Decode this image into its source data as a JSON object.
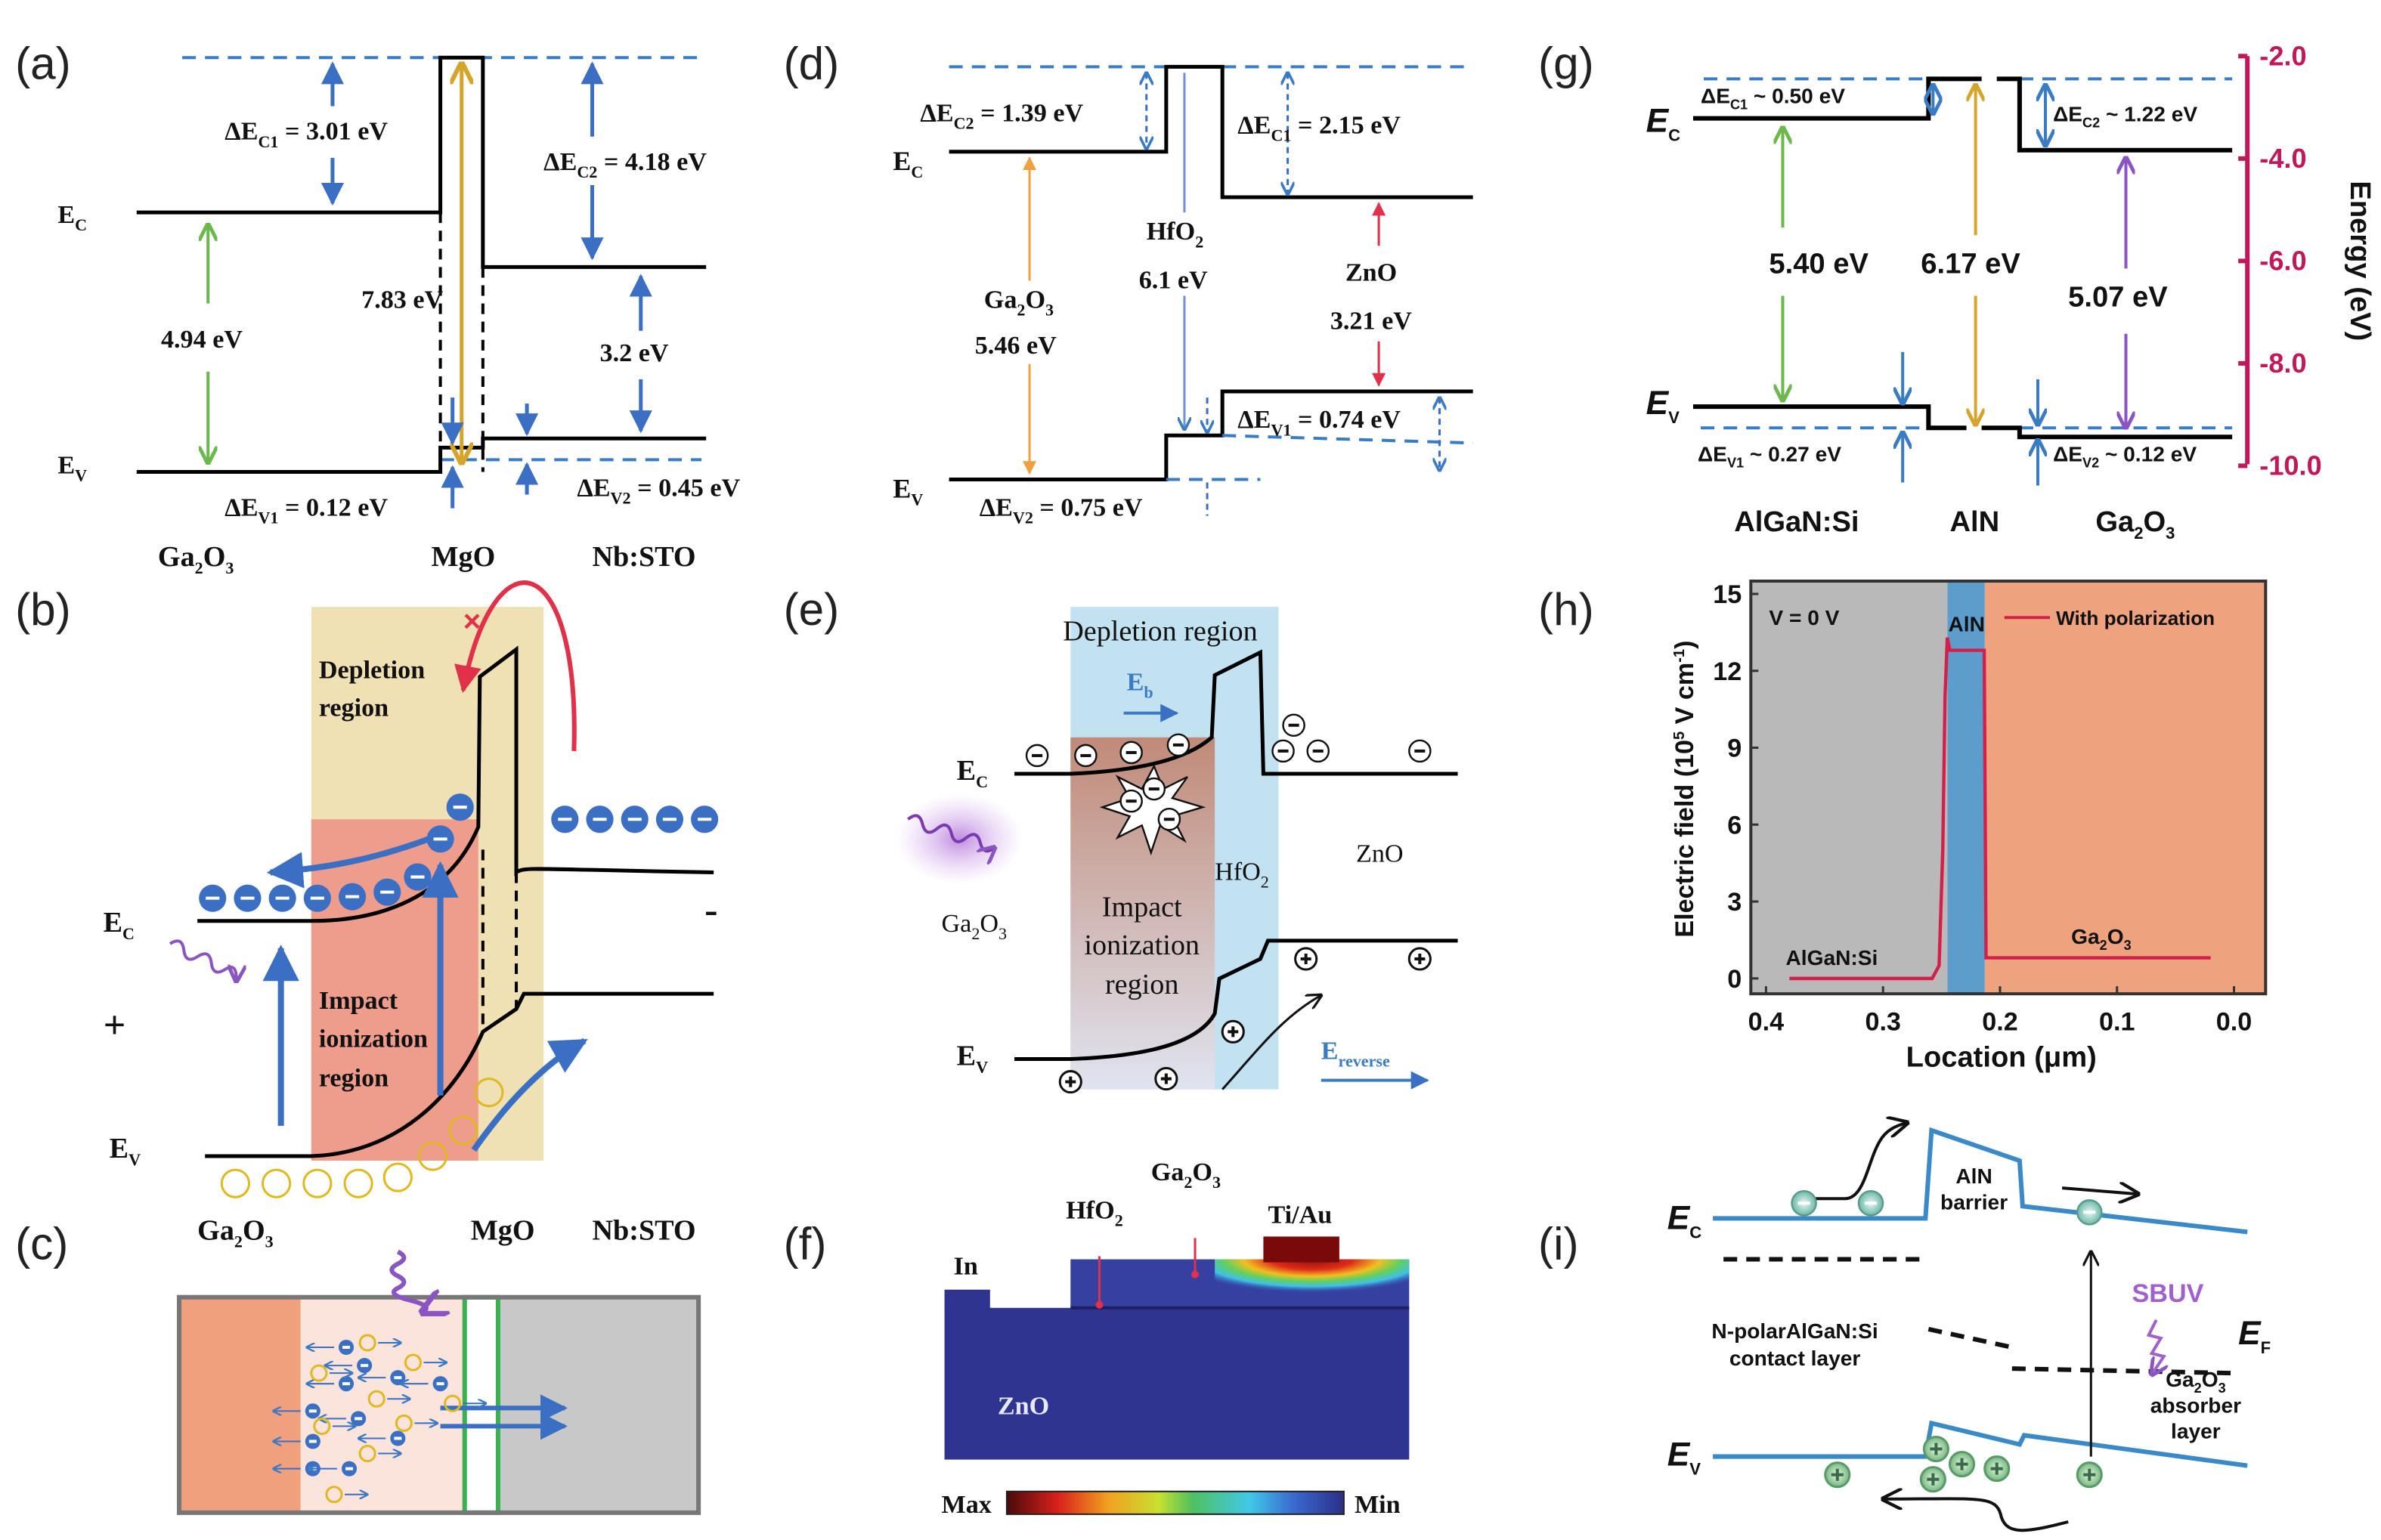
{
  "panels": {
    "a": {
      "label": "(a)",
      "ec": [
        "E",
        "C"
      ],
      "ev": [
        "E",
        "V"
      ],
      "dec1": [
        "ΔE",
        "C1",
        " = 3.01 eV"
      ],
      "dec2": [
        "ΔE",
        "C2",
        " = 4.18 eV"
      ],
      "dev1": [
        "ΔE",
        "V1",
        " = 0.12 eV"
      ],
      "dev2": [
        "ΔE",
        "V2",
        " = 0.45 eV"
      ],
      "gap1": "4.94 eV",
      "gap2": "7.83 eV",
      "gap3": "3.2 eV",
      "mat1": [
        "Ga",
        "2",
        "O",
        "3"
      ],
      "mat2": "MgO",
      "mat3": "Nb:STO"
    },
    "b": {
      "label": "(b)",
      "depletion": [
        "Depletion",
        "region"
      ],
      "impact": [
        "Impact",
        "ionization",
        "region"
      ],
      "ec": [
        "E",
        "C"
      ],
      "ev": [
        "E",
        "V"
      ],
      "plus": "+",
      "minus": "-",
      "mat1": [
        "Ga",
        "2",
        "O",
        "3"
      ],
      "mat2": "MgO",
      "mat3": "Nb:STO"
    },
    "c": {
      "label": "(c)"
    },
    "d": {
      "label": "(d)",
      "ec": [
        "E",
        "C"
      ],
      "ev": [
        "E",
        "V"
      ],
      "dec2": [
        "ΔE",
        "C2",
        " = 1.39 eV"
      ],
      "dec1": [
        "ΔE",
        "C1",
        " = 2.15 eV"
      ],
      "dev1": [
        "ΔE",
        "V1",
        " = 0.74 eV"
      ],
      "dev2": [
        "ΔE",
        "V2",
        " = 0.75 eV"
      ],
      "hfo2": [
        "HfO",
        "2"
      ],
      "gap_hfo2": "6.1 eV",
      "ga2o3": [
        "Ga",
        "2",
        "O",
        "3"
      ],
      "gap_ga2o3": "5.46 eV",
      "zno": "ZnO",
      "gap_zno": "3.21 eV"
    },
    "e": {
      "label": "(e)",
      "depletion": "Depletion region",
      "eb": [
        "E",
        "b"
      ],
      "ec": [
        "E",
        "C"
      ],
      "ev": [
        "E",
        "V"
      ],
      "hfo2": [
        "HfO",
        "2"
      ],
      "zno": "ZnO",
      "ga2o3": [
        "Ga",
        "2",
        "O",
        "3"
      ],
      "impact": [
        "Impact",
        "ionization",
        "region"
      ],
      "erev": [
        "E",
        "reverse"
      ]
    },
    "f": {
      "label": "(f)",
      "ga2o3": [
        "Ga",
        "2",
        "O",
        "3"
      ],
      "hfo2": [
        "HfO",
        "2"
      ],
      "tiau": "Ti/Au",
      "in": "In",
      "zno": "ZnO",
      "max": "Max",
      "min": "Min"
    },
    "g": {
      "label": "(g)",
      "ec": [
        "E",
        "C"
      ],
      "ev": [
        "E",
        "V"
      ],
      "dec1": [
        "ΔE",
        "C1",
        " ~ 0.50 eV"
      ],
      "dec2": [
        "ΔE",
        "C2",
        " ~ 1.22 eV"
      ],
      "dev1": [
        "ΔE",
        "V1",
        " ~ 0.27 eV"
      ],
      "dev2": [
        "ΔE",
        "V2",
        " ~ 0.12 eV"
      ],
      "gap1": "5.40 eV",
      "gap2": "6.17 eV",
      "gap3": "5.07 eV",
      "mat1": "AlGaN:Si",
      "mat2": "AlN",
      "mat3": [
        "Ga",
        "2",
        "O",
        "3"
      ],
      "axis_label": "Energy (eV)",
      "axis_ticks": [
        "-2.0",
        "-4.0",
        "-6.0",
        "-8.0",
        "-10.0"
      ]
    },
    "h": {
      "label": "(h)"
    },
    "i": {
      "label": "(i)",
      "ec": [
        "E",
        "C"
      ],
      "ev": [
        "E",
        "V"
      ],
      "ef": [
        "E",
        "F"
      ],
      "barrier": [
        "AlN",
        "barrier"
      ],
      "sbuv": "SBUV",
      "contact": [
        "N-polarAlGaN:Si",
        "contact layer"
      ],
      "absorber_mat": [
        "Ga",
        "2",
        "O",
        "3"
      ],
      "absorber": [
        "absorber",
        "layer"
      ]
    }
  },
  "chart_data": {
    "type": "line",
    "title": "",
    "xlabel": "Location (μm)",
    "ylabel": [
      "Electric field (10",
      "5",
      " V cm",
      "-1",
      ")"
    ],
    "xlim": [
      0.413,
      -0.027
    ],
    "ylim": [
      -0.6,
      15.5
    ],
    "xticks": [
      0.4,
      0.3,
      0.2,
      0.1,
      0.0
    ],
    "xtick_labels": [
      "0.4",
      "0.3",
      "0.2",
      "0.1",
      "0.0"
    ],
    "yticks": [
      0,
      3,
      6,
      9,
      12,
      15
    ],
    "ytick_labels": [
      "0",
      "3",
      "6",
      "9",
      "12",
      "15"
    ],
    "grid": false,
    "legend": {
      "label": "With polarization",
      "placement": "top-right"
    },
    "annotations": {
      "voltage": "V = 0 V",
      "aln": "AlN",
      "algan": "AlGaN:Si",
      "ga2o3": [
        "Ga",
        "2",
        "O",
        "3"
      ]
    },
    "regions": [
      {
        "name": "AlGaN:Si",
        "from": 0.413,
        "to": 0.245,
        "color": "#b9b9b9"
      },
      {
        "name": "AlN",
        "from": 0.245,
        "to": 0.213,
        "color": "#5c9dcc"
      },
      {
        "name": "Ga2O3",
        "from": 0.213,
        "to": -0.027,
        "color": "#eea27e"
      }
    ],
    "series": [
      {
        "name": "With polarization",
        "color": "#d2204a",
        "x": [
          0.38,
          0.258,
          0.252,
          0.249,
          0.247,
          0.245,
          0.243,
          0.2135,
          0.212,
          0.02
        ],
        "y": [
          0,
          0,
          0.5,
          5,
          11,
          13.3,
          12.8,
          12.8,
          0.8,
          0.8
        ]
      }
    ]
  }
}
